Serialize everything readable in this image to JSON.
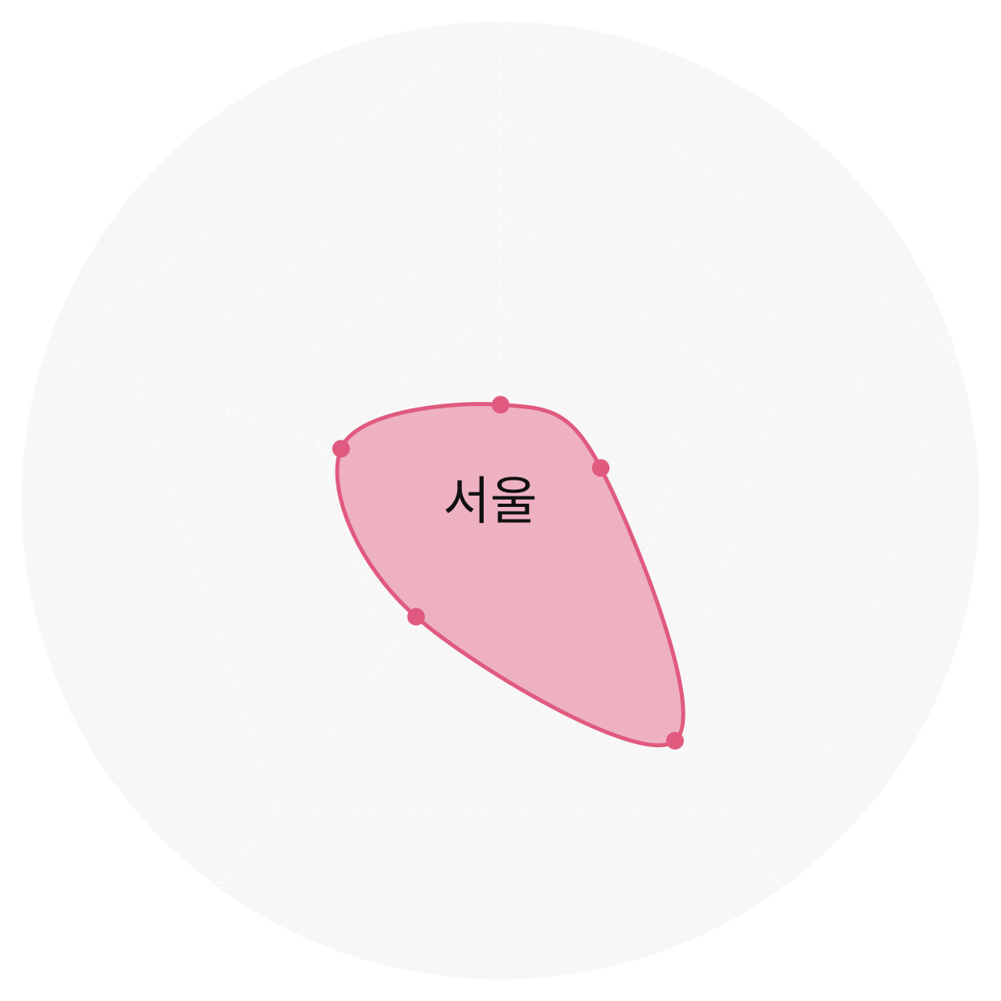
{
  "chart_data": {
    "type": "radar",
    "title": "",
    "axes": [
      "",
      "",
      "",
      "",
      ""
    ],
    "rmax": 100,
    "grid_levels": 5,
    "series": [
      {
        "name": "서울",
        "values": [
          20,
          22,
          62,
          30,
          35
        ],
        "color": "#e05a80"
      }
    ]
  },
  "colors": {
    "background_disc": "#f7f7f7",
    "grid_line": "#ffffff",
    "series_fill": "#e05a80",
    "series_stroke": "#e05a80"
  }
}
